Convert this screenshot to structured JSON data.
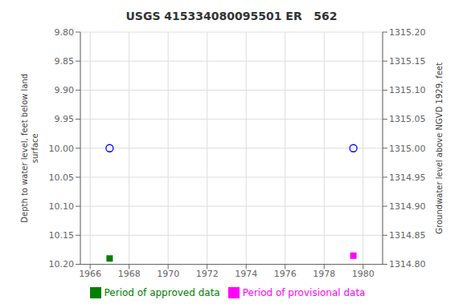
{
  "chart_data": {
    "type": "scatter",
    "title": "USGS 415334080095501 ER   562",
    "ylabel": "Depth to water level, feet below land\nsurface",
    "y2label": "Groundwater level above NGVD 1929, feet",
    "xlim": [
      1965.5,
      1981.0
    ],
    "xticks": [
      1966,
      1968,
      1970,
      1972,
      1974,
      1976,
      1978,
      1980
    ],
    "ylim": [
      10.2,
      9.8
    ],
    "yticks": [
      {
        "value": 9.8,
        "label": "9.80"
      },
      9.85,
      {
        "value": 9.9,
        "label": "9.90"
      },
      9.95,
      {
        "value": 10.0,
        "label": "10.00"
      },
      10.05,
      {
        "value": 10.1,
        "label": "10.10"
      },
      10.15,
      {
        "value": 10.2,
        "label": "10.20"
      }
    ],
    "y2lim": [
      1314.8,
      1315.2
    ],
    "y2ticks": [
      {
        "value": 1315.2,
        "label": "1315.20"
      },
      1315.15,
      {
        "value": 1315.1,
        "label": "1315.10"
      },
      1315.05,
      {
        "value": 1315.0,
        "label": "1315.00"
      },
      1314.95,
      {
        "value": 1314.9,
        "label": "1314.90"
      },
      1314.85,
      {
        "value": 1314.8,
        "label": "1314.80"
      }
    ],
    "grid": true,
    "legend": "bottom",
    "series": [
      {
        "name": "Period of approved data",
        "color": "#008000",
        "marker": "square",
        "x": [
          1967.0
        ],
        "values": [
          10.19
        ]
      },
      {
        "name": "Period of provisional data",
        "color": "#ff00ff",
        "marker": "square",
        "x": [
          1979.5
        ],
        "values": [
          10.185
        ]
      },
      {
        "color": "#0000ff",
        "marker": "open_circle",
        "x": [
          1967.0,
          1979.5
        ],
        "values": [
          10.0,
          10.0
        ]
      }
    ]
  }
}
